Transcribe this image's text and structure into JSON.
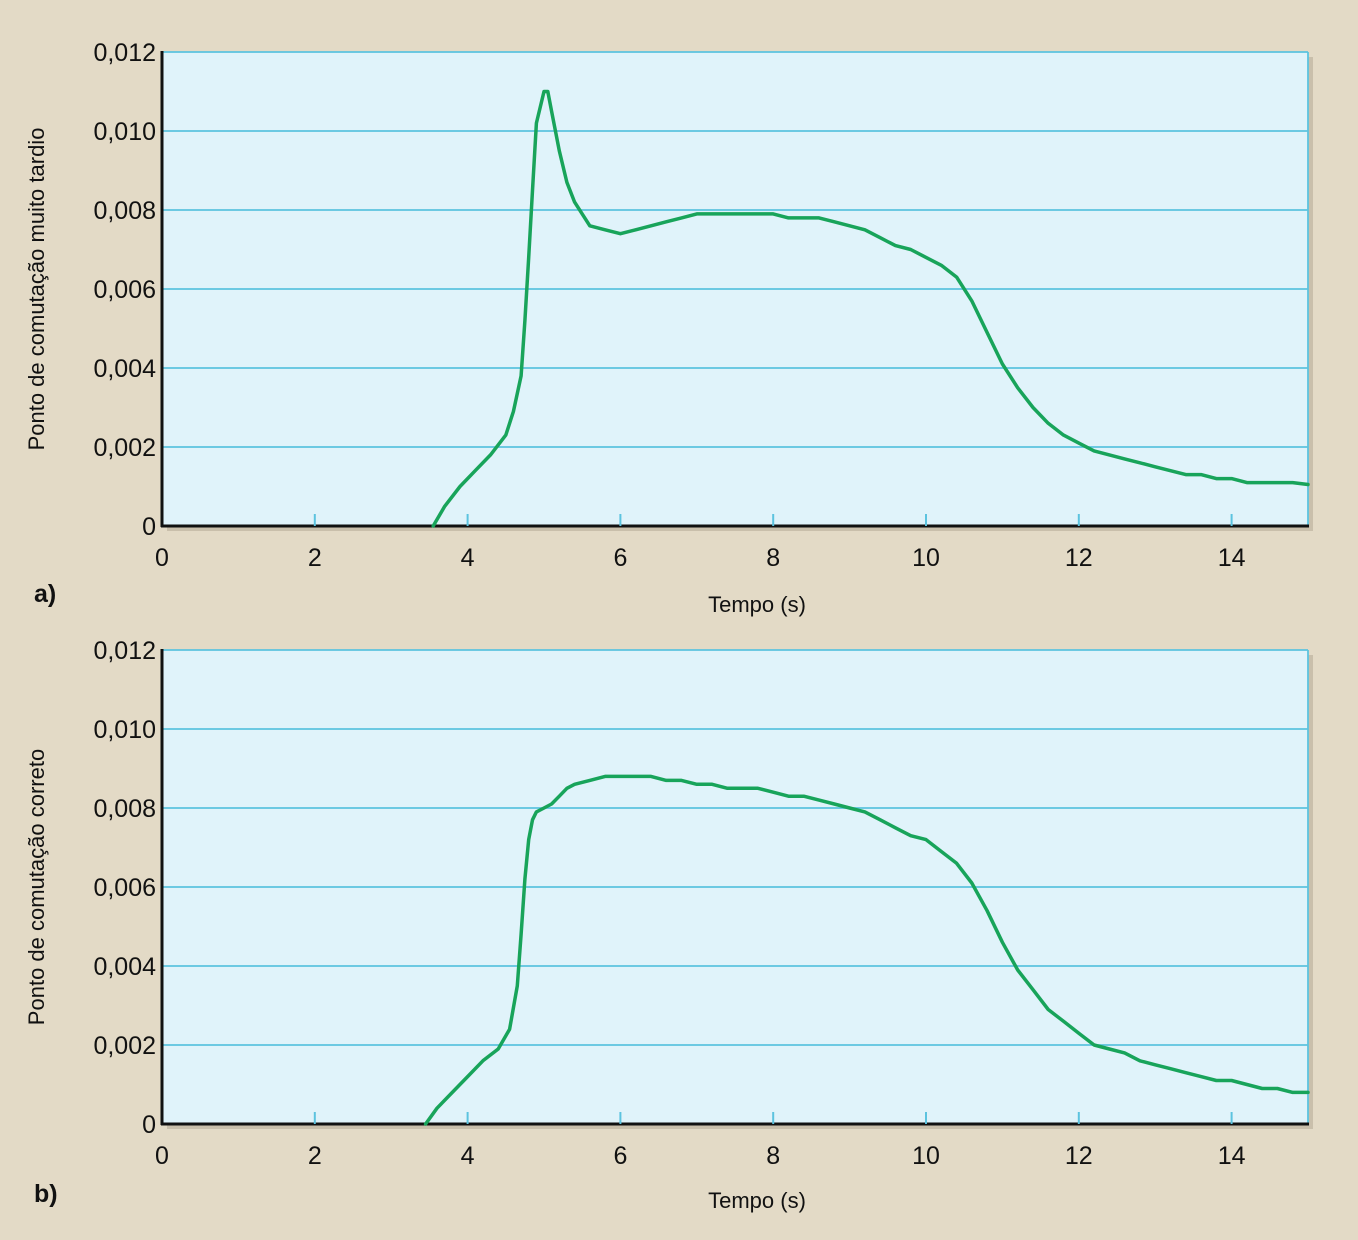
{
  "colors": {
    "background": "#e3dac6",
    "plot_area": "#e0f3fa",
    "gridline": "#5cc3df",
    "series_line": "#18a45a",
    "axis": "#111111"
  },
  "chart_data": [
    {
      "type": "line",
      "panel_label": "a)",
      "xlabel": "Tempo (s)",
      "ylabel": "Ponto de comutação muito tardio",
      "xlim": [
        0,
        15
      ],
      "ylim": [
        0,
        0.012
      ],
      "x_ticks": [
        0,
        2,
        4,
        6,
        8,
        10,
        12,
        14
      ],
      "x_tick_labels": [
        "0",
        "2",
        "4",
        "6",
        "8",
        "10",
        "12",
        "14"
      ],
      "y_ticks": [
        0,
        0.002,
        0.004,
        0.006,
        0.008,
        0.01,
        0.012
      ],
      "y_tick_labels": [
        "0",
        "0,002",
        "0,004",
        "0,006",
        "0,008",
        "0,010",
        "0,012"
      ],
      "grid": "horizontal",
      "series": [
        {
          "x": [
            3.55,
            3.7,
            3.9,
            4.1,
            4.3,
            4.5,
            4.6,
            4.7,
            4.75,
            4.8,
            4.85,
            4.9,
            5.0,
            5.05,
            5.1,
            5.2,
            5.3,
            5.4,
            5.6,
            5.8,
            6.0,
            6.2,
            6.4,
            6.6,
            6.8,
            7.0,
            7.2,
            7.4,
            7.6,
            7.8,
            8.0,
            8.2,
            8.4,
            8.6,
            8.8,
            9.0,
            9.2,
            9.4,
            9.6,
            9.8,
            10.0,
            10.2,
            10.4,
            10.6,
            10.8,
            11.0,
            11.2,
            11.4,
            11.6,
            11.8,
            12.0,
            12.2,
            12.4,
            12.6,
            12.8,
            13.0,
            13.2,
            13.4,
            13.6,
            13.8,
            14.0,
            14.2,
            14.4,
            14.6,
            14.8,
            15.0
          ],
          "y": [
            0.0,
            0.0005,
            0.001,
            0.0014,
            0.0018,
            0.0023,
            0.0029,
            0.0038,
            0.0052,
            0.0068,
            0.0085,
            0.0102,
            0.011,
            0.011,
            0.0105,
            0.0095,
            0.0087,
            0.0082,
            0.0076,
            0.0075,
            0.0074,
            0.0075,
            0.0076,
            0.0077,
            0.0078,
            0.0079,
            0.0079,
            0.0079,
            0.0079,
            0.0079,
            0.0079,
            0.0078,
            0.0078,
            0.0078,
            0.0077,
            0.0076,
            0.0075,
            0.0073,
            0.0071,
            0.007,
            0.0068,
            0.0066,
            0.0063,
            0.0057,
            0.0049,
            0.0041,
            0.0035,
            0.003,
            0.0026,
            0.0023,
            0.0021,
            0.0019,
            0.0018,
            0.0017,
            0.0016,
            0.0015,
            0.0014,
            0.0013,
            0.0013,
            0.0012,
            0.0012,
            0.0011,
            0.0011,
            0.0011,
            0.0011,
            0.00105
          ]
        }
      ]
    },
    {
      "type": "line",
      "panel_label": "b)",
      "xlabel": "Tempo (s)",
      "ylabel": "Ponto de comutação correto",
      "xlim": [
        0,
        15
      ],
      "ylim": [
        0,
        0.012
      ],
      "x_ticks": [
        0,
        2,
        4,
        6,
        8,
        10,
        12,
        14
      ],
      "x_tick_labels": [
        "0",
        "2",
        "4",
        "6",
        "8",
        "10",
        "12",
        "14"
      ],
      "y_ticks": [
        0,
        0.002,
        0.004,
        0.006,
        0.008,
        0.01,
        0.012
      ],
      "y_tick_labels": [
        "0",
        "0,002",
        "0,004",
        "0,006",
        "0,008",
        "0,010",
        "0,012"
      ],
      "grid": "horizontal",
      "series": [
        {
          "x": [
            3.45,
            3.6,
            3.8,
            4.0,
            4.2,
            4.4,
            4.55,
            4.65,
            4.7,
            4.75,
            4.8,
            4.85,
            4.9,
            5.0,
            5.1,
            5.2,
            5.3,
            5.4,
            5.6,
            5.8,
            6.0,
            6.2,
            6.4,
            6.6,
            6.8,
            7.0,
            7.2,
            7.4,
            7.6,
            7.8,
            8.0,
            8.2,
            8.4,
            8.6,
            8.8,
            9.0,
            9.2,
            9.4,
            9.6,
            9.8,
            10.0,
            10.2,
            10.4,
            10.6,
            10.8,
            11.0,
            11.2,
            11.4,
            11.6,
            11.8,
            12.0,
            12.2,
            12.4,
            12.6,
            12.8,
            13.0,
            13.2,
            13.4,
            13.6,
            13.8,
            14.0,
            14.2,
            14.4,
            14.6,
            14.8,
            15.0
          ],
          "y": [
            0.0,
            0.0004,
            0.0008,
            0.0012,
            0.0016,
            0.0019,
            0.0024,
            0.0035,
            0.0048,
            0.0062,
            0.0072,
            0.0077,
            0.0079,
            0.008,
            0.0081,
            0.0083,
            0.0085,
            0.0086,
            0.0087,
            0.0088,
            0.0088,
            0.0088,
            0.0088,
            0.0087,
            0.0087,
            0.0086,
            0.0086,
            0.0085,
            0.0085,
            0.0085,
            0.0084,
            0.0083,
            0.0083,
            0.0082,
            0.0081,
            0.008,
            0.0079,
            0.0077,
            0.0075,
            0.0073,
            0.0072,
            0.0069,
            0.0066,
            0.0061,
            0.0054,
            0.0046,
            0.0039,
            0.0034,
            0.0029,
            0.0026,
            0.0023,
            0.002,
            0.0019,
            0.0018,
            0.0016,
            0.0015,
            0.0014,
            0.0013,
            0.0012,
            0.0011,
            0.0011,
            0.001,
            0.0009,
            0.0009,
            0.0008,
            0.0008
          ]
        }
      ]
    }
  ]
}
